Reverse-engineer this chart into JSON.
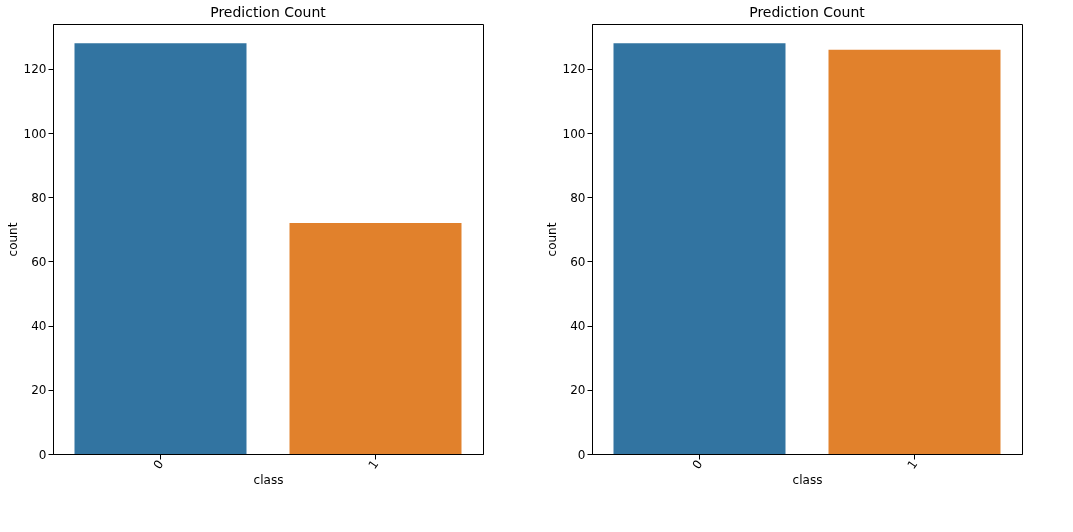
{
  "chart_data": [
    {
      "type": "bar",
      "title": "Prediction Count",
      "xlabel": "class",
      "ylabel": "count",
      "categories": [
        "0",
        "1"
      ],
      "values": [
        128,
        72
      ],
      "colors": [
        "#3274a1",
        "#e1812c"
      ],
      "ylim": [
        0,
        134
      ],
      "yticks": [
        0,
        20,
        40,
        60,
        80,
        100,
        120
      ],
      "grid": false
    },
    {
      "type": "bar",
      "title": "Prediction Count",
      "xlabel": "class",
      "ylabel": "count",
      "categories": [
        "0",
        "1"
      ],
      "values": [
        128,
        126
      ],
      "colors": [
        "#3274a1",
        "#e1812c"
      ],
      "ylim": [
        0,
        134
      ],
      "yticks": [
        0,
        20,
        40,
        60,
        80,
        100,
        120
      ],
      "grid": false
    }
  ]
}
